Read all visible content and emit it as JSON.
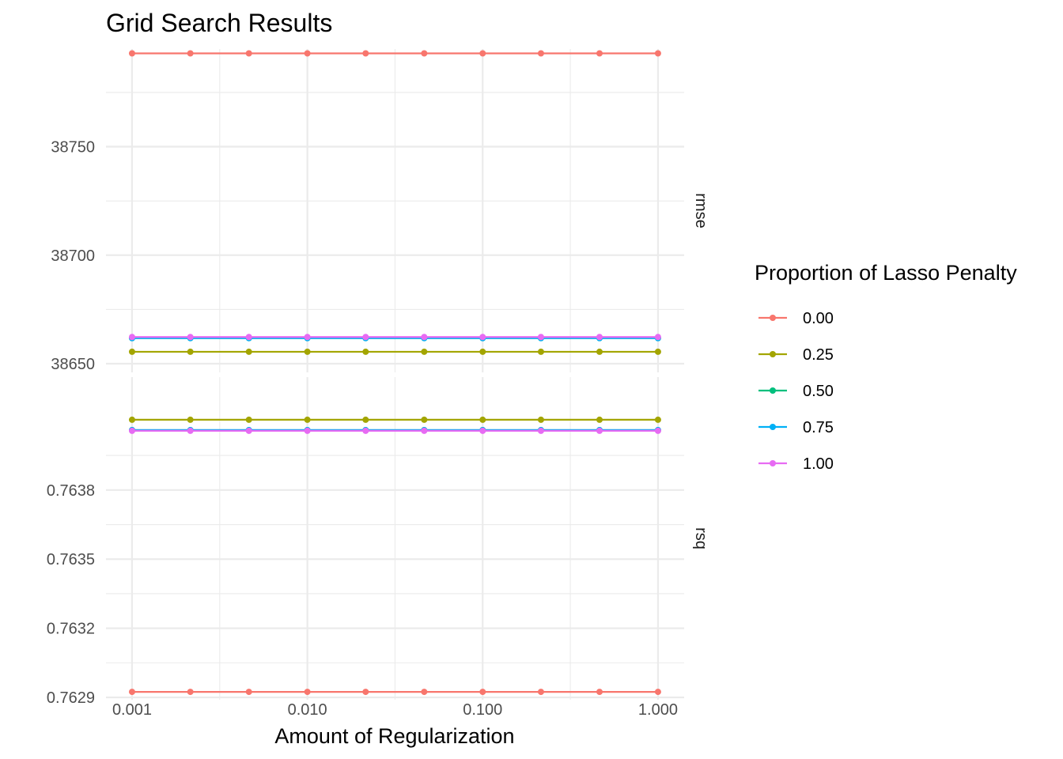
{
  "chart_data": {
    "type": "line",
    "title": "Grid Search Results",
    "xlabel": "Amount of Regularization",
    "x_scale": "log10",
    "x": [
      0.001,
      0.00215,
      0.00464,
      0.01,
      0.0215,
      0.0464,
      0.1,
      0.215,
      0.464,
      1.0
    ],
    "x_ticks": [
      0.001,
      0.01,
      0.1,
      1.0
    ],
    "x_tick_labels": [
      "0.001",
      "0.010",
      "0.100",
      "1.000"
    ],
    "xlim": [
      0.00071,
      1.41
    ],
    "grid": true,
    "legend": {
      "title": "Proportion of Lasso Penalty",
      "placement": "right",
      "entries": [
        "0.00",
        "0.25",
        "0.50",
        "0.75",
        "1.00"
      ],
      "colors": [
        "#F8766D",
        "#A3A500",
        "#00BF7D",
        "#00B0F6",
        "#E76BF3"
      ]
    },
    "panels": [
      {
        "strip": "rmse",
        "ylim": [
          38646,
          38795
        ],
        "y_ticks": [
          38650,
          38700,
          38750
        ],
        "y_tick_labels": [
          "38650",
          "38700",
          "38750"
        ],
        "series": [
          {
            "name": "0.00",
            "values": [
              38793,
              38793,
              38793,
              38793,
              38793,
              38793,
              38793,
              38793,
              38793,
              38793
            ]
          },
          {
            "name": "0.25",
            "values": [
              38655.5,
              38655.5,
              38655.5,
              38655.5,
              38655.5,
              38655.5,
              38655.5,
              38655.5,
              38655.5,
              38655.5
            ]
          },
          {
            "name": "0.50",
            "values": [
              38661.8,
              38661.8,
              38661.8,
              38661.8,
              38661.8,
              38661.8,
              38661.8,
              38661.8,
              38661.8,
              38661.8
            ]
          },
          {
            "name": "0.75",
            "values": [
              38661.8,
              38661.8,
              38661.8,
              38661.8,
              38661.8,
              38661.8,
              38661.8,
              38661.8,
              38661.8,
              38661.8
            ]
          },
          {
            "name": "1.00",
            "values": [
              38662.3,
              38662.3,
              38662.3,
              38662.3,
              38662.3,
              38662.3,
              38662.3,
              38662.3,
              38662.3,
              38662.3
            ]
          }
        ]
      },
      {
        "strip": "rsq",
        "ylim": [
          0.76289,
          0.76429
        ],
        "y_ticks": [
          0.7629,
          0.7632,
          0.7635,
          0.7638
        ],
        "y_tick_labels": [
          "0.7629",
          "0.7632",
          "0.7635",
          "0.7638"
        ],
        "series": [
          {
            "name": "0.00",
            "values": [
              0.762924,
              0.762924,
              0.762924,
              0.762924,
              0.762924,
              0.762924,
              0.762924,
              0.762924,
              0.762924,
              0.762924
            ]
          },
          {
            "name": "0.25",
            "values": [
              0.764105,
              0.764105,
              0.764105,
              0.764105,
              0.764105,
              0.764105,
              0.764105,
              0.764105,
              0.764105,
              0.764105
            ]
          },
          {
            "name": "0.50",
            "values": [
              0.76406,
              0.76406,
              0.76406,
              0.76406,
              0.76406,
              0.76406,
              0.76406,
              0.76406,
              0.76406,
              0.76406
            ]
          },
          {
            "name": "0.75",
            "values": [
              0.76406,
              0.76406,
              0.76406,
              0.76406,
              0.76406,
              0.76406,
              0.76406,
              0.76406,
              0.76406,
              0.76406
            ]
          },
          {
            "name": "1.00",
            "values": [
              0.764057,
              0.764057,
              0.764057,
              0.764057,
              0.764057,
              0.764057,
              0.764057,
              0.764057,
              0.764057,
              0.764057
            ]
          }
        ]
      }
    ]
  }
}
